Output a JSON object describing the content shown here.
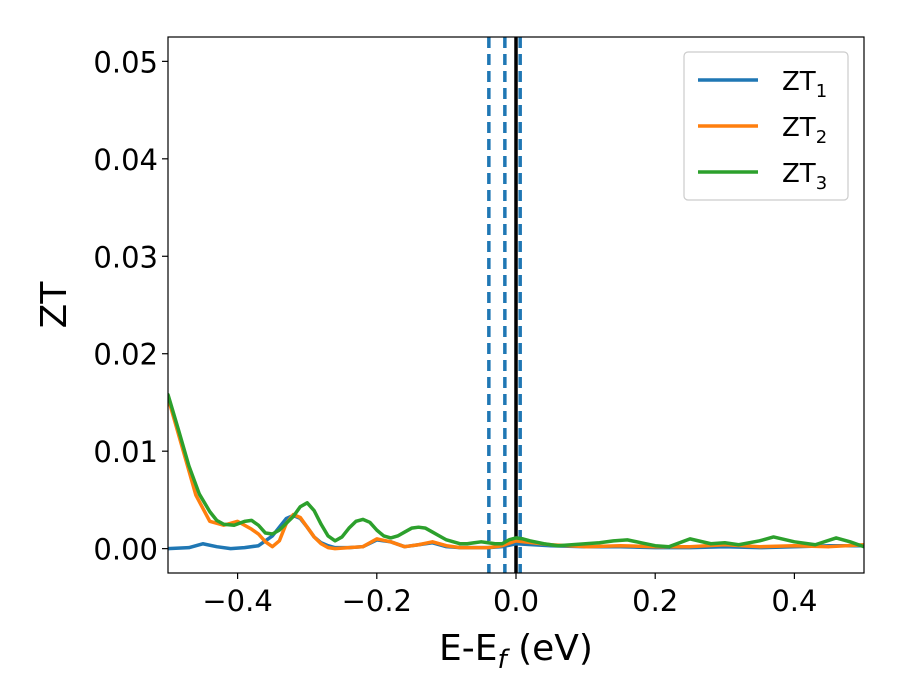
{
  "chart_data": {
    "type": "line",
    "xlabel": "E-E",
    "xlabel_sub": "f",
    "xlabel_unit": " (eV)",
    "ylabel": "ZT",
    "xlim": [
      -0.5,
      0.5
    ],
    "ylim": [
      -0.0025,
      0.0525
    ],
    "xticks": [
      {
        "v": -0.4,
        "label": "−0.4"
      },
      {
        "v": -0.2,
        "label": "−0.2"
      },
      {
        "v": 0.0,
        "label": "0.0"
      },
      {
        "v": 0.2,
        "label": "0.2"
      },
      {
        "v": 0.4,
        "label": "0.4"
      }
    ],
    "yticks": [
      {
        "v": 0.0,
        "label": "0.00"
      },
      {
        "v": 0.01,
        "label": "0.01"
      },
      {
        "v": 0.02,
        "label": "0.02"
      },
      {
        "v": 0.03,
        "label": "0.03"
      },
      {
        "v": 0.04,
        "label": "0.04"
      },
      {
        "v": 0.05,
        "label": "0.05"
      }
    ],
    "legend_position": "top-right",
    "series": [
      {
        "name": "ZT",
        "sub": "1",
        "color": "#1f77b4",
        "x": [
          -0.5,
          -0.47,
          -0.45,
          -0.43,
          -0.41,
          -0.39,
          -0.37,
          -0.35,
          -0.33,
          -0.32,
          -0.31,
          -0.3,
          -0.29,
          -0.28,
          -0.27,
          -0.26,
          -0.24,
          -0.22,
          -0.2,
          -0.18,
          -0.16,
          -0.14,
          -0.12,
          -0.1,
          -0.08,
          -0.06,
          -0.04,
          -0.02,
          0.0,
          0.05,
          0.1,
          0.15,
          0.2,
          0.25,
          0.3,
          0.35,
          0.4,
          0.45,
          0.5
        ],
        "y": [
          0.0,
          0.0001,
          0.0005,
          0.0002,
          0.0,
          0.0001,
          0.0003,
          0.0013,
          0.0031,
          0.0034,
          0.0031,
          0.0022,
          0.0012,
          0.0006,
          0.0003,
          0.0001,
          0.0001,
          0.0002,
          0.0009,
          0.0007,
          0.0002,
          0.0004,
          0.0006,
          0.0002,
          0.0001,
          0.0001,
          0.0001,
          0.0002,
          0.0005,
          0.0003,
          0.0002,
          0.0002,
          0.0001,
          0.0001,
          0.0002,
          0.0001,
          0.0002,
          0.0003,
          0.0003
        ]
      },
      {
        "name": "ZT",
        "sub": "2",
        "color": "#ff7f0e",
        "x": [
          -0.5,
          -0.48,
          -0.46,
          -0.44,
          -0.42,
          -0.4,
          -0.38,
          -0.37,
          -0.36,
          -0.35,
          -0.34,
          -0.33,
          -0.32,
          -0.31,
          -0.3,
          -0.29,
          -0.28,
          -0.27,
          -0.26,
          -0.24,
          -0.22,
          -0.2,
          -0.18,
          -0.16,
          -0.14,
          -0.12,
          -0.1,
          -0.08,
          -0.06,
          -0.04,
          -0.02,
          0.0,
          0.05,
          0.1,
          0.15,
          0.2,
          0.25,
          0.3,
          0.35,
          0.4,
          0.45,
          0.5
        ],
        "y": [
          0.0155,
          0.0105,
          0.0055,
          0.0028,
          0.0024,
          0.0028,
          0.002,
          0.0015,
          0.0007,
          0.0002,
          0.0008,
          0.0026,
          0.0035,
          0.0032,
          0.0022,
          0.0012,
          0.0005,
          0.0001,
          0.0,
          0.0001,
          0.0002,
          0.001,
          0.0007,
          0.0002,
          0.0004,
          0.0007,
          0.0003,
          0.0001,
          0.0001,
          0.0001,
          0.0003,
          0.0008,
          0.0004,
          0.0002,
          0.0003,
          0.0002,
          0.0002,
          0.0004,
          0.0002,
          0.0003,
          0.0002,
          0.0004
        ]
      },
      {
        "name": "ZT",
        "sub": "3",
        "color": "#2ca02c",
        "x": [
          -0.5,
          -0.485,
          -0.47,
          -0.455,
          -0.44,
          -0.43,
          -0.42,
          -0.405,
          -0.39,
          -0.38,
          -0.37,
          -0.36,
          -0.35,
          -0.34,
          -0.33,
          -0.32,
          -0.31,
          -0.3,
          -0.29,
          -0.28,
          -0.27,
          -0.26,
          -0.25,
          -0.24,
          -0.23,
          -0.22,
          -0.21,
          -0.2,
          -0.19,
          -0.18,
          -0.17,
          -0.16,
          -0.15,
          -0.14,
          -0.13,
          -0.12,
          -0.11,
          -0.1,
          -0.09,
          -0.08,
          -0.07,
          -0.06,
          -0.05,
          -0.04,
          -0.03,
          -0.02,
          -0.01,
          0.0,
          0.01,
          0.02,
          0.04,
          0.06,
          0.08,
          0.1,
          0.12,
          0.14,
          0.16,
          0.18,
          0.2,
          0.22,
          0.25,
          0.28,
          0.3,
          0.32,
          0.35,
          0.37,
          0.4,
          0.43,
          0.46,
          0.48,
          0.5
        ],
        "y": [
          0.0158,
          0.0122,
          0.0085,
          0.0056,
          0.0038,
          0.0029,
          0.0025,
          0.0024,
          0.0028,
          0.0029,
          0.0024,
          0.0016,
          0.0015,
          0.0019,
          0.0026,
          0.0033,
          0.0043,
          0.0047,
          0.0039,
          0.0025,
          0.0013,
          0.0008,
          0.0012,
          0.0021,
          0.0028,
          0.003,
          0.0027,
          0.0019,
          0.0013,
          0.0011,
          0.0013,
          0.0017,
          0.0021,
          0.0022,
          0.0021,
          0.0017,
          0.0013,
          0.0009,
          0.0007,
          0.0005,
          0.0005,
          0.0006,
          0.0007,
          0.0006,
          0.0005,
          0.0005,
          0.0009,
          0.0011,
          0.001,
          0.0008,
          0.0005,
          0.0003,
          0.0004,
          0.0005,
          0.0006,
          0.0008,
          0.0009,
          0.0006,
          0.0003,
          0.0002,
          0.001,
          0.0005,
          0.0006,
          0.0004,
          0.0008,
          0.0012,
          0.0007,
          0.0004,
          0.0011,
          0.0007,
          0.0002
        ]
      }
    ],
    "vlines": [
      {
        "x": -0.039,
        "style": "dashed",
        "color": "#1f77b4"
      },
      {
        "x": -0.016,
        "style": "dashed",
        "color": "#1f77b4"
      },
      {
        "x": 0.006,
        "style": "dashed",
        "color": "#1f77b4"
      },
      {
        "x": 0.0,
        "style": "solid",
        "color": "#000000"
      }
    ]
  }
}
